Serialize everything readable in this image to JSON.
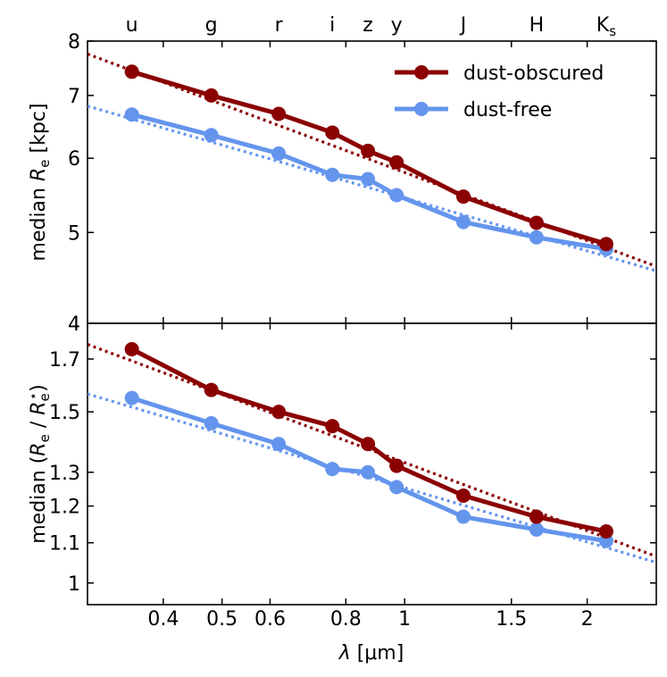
{
  "colors": {
    "dust_obscured": "#8b0000",
    "dust_free": "#6495ed",
    "axis": "#000000"
  },
  "chart_data": [
    {
      "type": "line",
      "panel": "top",
      "ylabel_prefix": "median ",
      "ylabel_var": "R",
      "ylabel_sub": "e",
      "ylabel_suffix": " [kpc]",
      "yscale": "log",
      "ylim": [
        4,
        8
      ],
      "yticks": [
        4,
        5,
        6,
        7,
        8
      ],
      "ytick_labels": [
        "4",
        "5",
        "6",
        "7",
        "8"
      ],
      "x": [
        0.355,
        0.48,
        0.62,
        0.76,
        0.87,
        0.97,
        1.25,
        1.65,
        2.15
      ],
      "series": [
        {
          "name": "dust-obscured",
          "values": [
            7.42,
            7.0,
            6.69,
            6.39,
            6.11,
            5.94,
            5.46,
            5.12,
            4.86
          ]
        },
        {
          "name": "dust-free",
          "values": [
            6.68,
            6.35,
            6.07,
            5.76,
            5.7,
            5.48,
            5.13,
            4.94,
            4.8
          ]
        }
      ],
      "fits": [
        {
          "name": "dust-obscured fit",
          "x": [
            0.3,
            2.6
          ],
          "values": [
            7.75,
            4.6
          ]
        },
        {
          "name": "dust-free fit",
          "x": [
            0.3,
            2.6
          ],
          "values": [
            6.82,
            4.55
          ]
        }
      ],
      "legend": {
        "position": "top-right",
        "entries": [
          "dust-obscured",
          "dust-free"
        ]
      },
      "band_labels": [
        "u",
        "g",
        "r",
        "i",
        "z",
        "y",
        "J",
        "H",
        "K"
      ],
      "band_label_sub_last": "s"
    },
    {
      "type": "line",
      "panel": "bottom",
      "ylabel_prefix": "median (",
      "ylabel_var": "R",
      "ylabel_sub": "e",
      "ylabel_mid": " / ",
      "ylabel_var2": "R",
      "ylabel_sub2": "e",
      "ylabel_sup2": "⋆",
      "ylabel_suffix": ")",
      "yscale": "log",
      "ylim": [
        0.95,
        1.85
      ],
      "yticks": [
        1.0,
        1.1,
        1.2,
        1.3,
        1.5,
        1.7
      ],
      "ytick_labels": [
        "1",
        "1.1",
        "1.2",
        "1.3",
        "1.5",
        "1.7"
      ],
      "x": [
        0.355,
        0.48,
        0.62,
        0.76,
        0.87,
        0.97,
        1.25,
        1.65,
        2.15
      ],
      "series": [
        {
          "name": "dust-obscured",
          "values": [
            1.74,
            1.58,
            1.5,
            1.45,
            1.39,
            1.32,
            1.23,
            1.17,
            1.13
          ]
        },
        {
          "name": "dust-free",
          "values": [
            1.55,
            1.46,
            1.39,
            1.31,
            1.3,
            1.255,
            1.17,
            1.135,
            1.105
          ]
        }
      ],
      "fits": [
        {
          "name": "dust-obscured fit",
          "x": [
            0.3,
            2.6
          ],
          "values": [
            1.76,
            1.065
          ]
        },
        {
          "name": "dust-free fit",
          "x": [
            0.3,
            2.6
          ],
          "values": [
            1.565,
            1.05
          ]
        }
      ]
    }
  ],
  "x_axis": {
    "label_var": "λ",
    "label_unit": " [μm]",
    "xscale": "log",
    "xlim": [
      0.3,
      2.6
    ],
    "xticks": [
      0.4,
      0.5,
      0.6,
      0.8,
      1,
      1.5,
      2
    ],
    "xtick_labels": [
      "0.4",
      "0.5",
      "0.6",
      "0.8",
      "1",
      "1.5",
      "2"
    ]
  }
}
